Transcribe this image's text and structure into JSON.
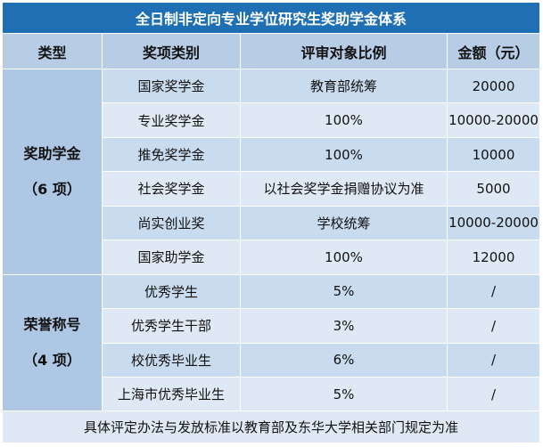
{
  "title": "全日制非定向专业学位研究生奖助学金体系",
  "headers": [
    "类型",
    "奖项类别",
    "评审对象比例",
    "金额（元）"
  ],
  "groups": [
    {
      "name": "奖助学金",
      "count": "（6 项）",
      "rows": [
        {
          "award": "国家奖学金",
          "ratio": "教育部统筹",
          "amount": "20000"
        },
        {
          "award": "专业奖学金",
          "ratio": "100%",
          "amount": "10000-20000"
        },
        {
          "award": "推免奖学金",
          "ratio": "100%",
          "amount": "10000"
        },
        {
          "award": "社会奖学金",
          "ratio": "以社会奖学金捐赠协议为准",
          "amount": "5000"
        },
        {
          "award": "尚实创业奖",
          "ratio": "学校统筹",
          "amount": "10000-20000"
        },
        {
          "award": "国家助学金",
          "ratio": "100%",
          "amount": "12000"
        }
      ]
    },
    {
      "name": "荣誉称号",
      "count": "（4 项）",
      "rows": [
        {
          "award": "优秀学生",
          "ratio": "5%",
          "amount": "/"
        },
        {
          "award": "优秀学生干部",
          "ratio": "3%",
          "amount": "/"
        },
        {
          "award": "校优秀毕业生",
          "ratio": "6%",
          "amount": "/"
        },
        {
          "award": "上海市优秀毕业生",
          "ratio": "5%",
          "amount": "/"
        }
      ]
    }
  ],
  "footer": "具体评定办法与发放标准以教育部及东华大学相关部门规定为准",
  "colors": {
    "title_bg": "#1f6fb5",
    "header_bg": "#b7cde6",
    "row_dark": "#c9dbee",
    "row_light": "#dfe9f5"
  }
}
